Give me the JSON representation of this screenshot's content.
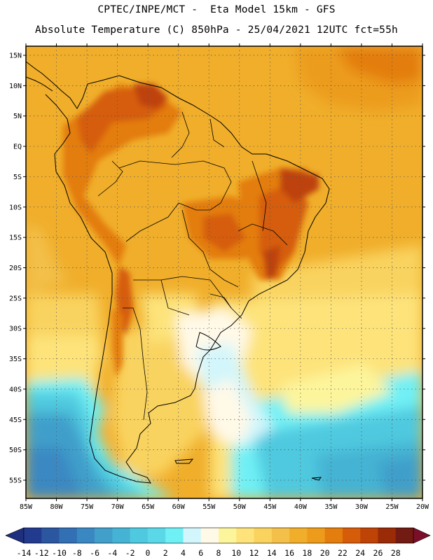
{
  "header": {
    "line1": "CPTEC/INPE/MCT -  Eta Model 15km - GFS",
    "line2": "Absolute Temperature (C) 850hPa - 25/04/2021 12UTC fct=55h"
  },
  "map": {
    "lat_labels": [
      "15N",
      "10N",
      "5N",
      "EQ",
      "5S",
      "10S",
      "15S",
      "20S",
      "25S",
      "30S",
      "35S",
      "40S",
      "45S",
      "50S",
      "55S"
    ],
    "lon_labels": [
      "85W",
      "80W",
      "75W",
      "70W",
      "65W",
      "60W",
      "55W",
      "50W",
      "45W",
      "40W",
      "35W",
      "30W",
      "25W",
      "20W"
    ],
    "extent": {
      "lon_min": -85,
      "lon_max": -20,
      "lat_min": -58,
      "lat_max": 16.5
    }
  },
  "colorbar": {
    "ticks": [
      "-14",
      "-12",
      "-10",
      "-8",
      "-6",
      "-4",
      "-2",
      "0",
      "2",
      "4",
      "6",
      "8",
      "10",
      "12",
      "14",
      "16",
      "18",
      "20",
      "22",
      "24",
      "26",
      "28"
    ],
    "colors": [
      "#233b8f",
      "#2b56a0",
      "#3270b3",
      "#3a88c2",
      "#419fca",
      "#45b3d3",
      "#4fc9df",
      "#5ad8e8",
      "#6ff0f5",
      "#d2f6fb",
      "#fff9e8",
      "#fdf59c",
      "#fde37a",
      "#f9d35e",
      "#f3c04a",
      "#f0ae2b",
      "#ec9c1a",
      "#e37d0d",
      "#d55d0a",
      "#be4307",
      "#992b07",
      "#711b12"
    ],
    "under_color": "#1e2f80",
    "over_color": "#7d0e2a"
  }
}
